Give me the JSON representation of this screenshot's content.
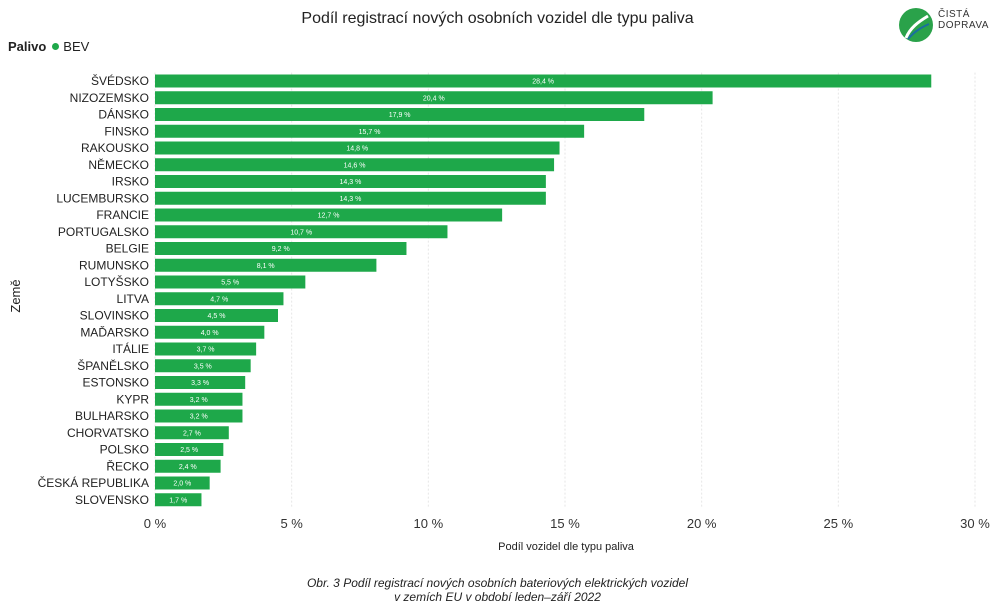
{
  "chart_data": {
    "type": "bar",
    "orientation": "horizontal",
    "title": "Podíl registrací nových osobních vozidel dle typu paliva",
    "xlabel": "Podíl vozidel dle typu paliva",
    "ylabel": "Země",
    "xlim": [
      0,
      30
    ],
    "xticks": [
      0,
      5,
      10,
      15,
      20,
      25,
      30
    ],
    "tick_suffix": " %",
    "grid": true,
    "legend": {
      "title": "Palivo",
      "position": "top-left",
      "entries": [
        "BEV"
      ]
    },
    "bar_color": "#1ea84a",
    "categories": [
      "ŠVÉDSKO",
      "NIZOZEMSKO",
      "DÁNSKO",
      "FINSKO",
      "RAKOUSKO",
      "NĚMECKO",
      "IRSKO",
      "LUCEMBURSKO",
      "FRANCIE",
      "PORTUGALSKO",
      "BELGIE",
      "RUMUNSKO",
      "LOTYŠSKO",
      "LITVA",
      "SLOVINSKO",
      "MAĎARSKO",
      "ITÁLIE",
      "ŠPANĚLSKO",
      "ESTONSKO",
      "KYPR",
      "BULHARSKO",
      "CHORVATSKO",
      "POLSKO",
      "ŘECKO",
      "ČESKÁ REPUBLIKA",
      "SLOVENSKO"
    ],
    "series": [
      {
        "name": "BEV",
        "values": [
          28.4,
          20.4,
          17.9,
          15.7,
          14.8,
          14.6,
          14.3,
          14.3,
          12.7,
          10.7,
          9.2,
          8.1,
          5.5,
          4.7,
          4.5,
          4.0,
          3.7,
          3.5,
          3.3,
          3.2,
          3.2,
          2.7,
          2.5,
          2.4,
          2.0,
          1.7
        ],
        "labels": [
          "28,4 %",
          "20,4 %",
          "17,9 %",
          "15,7 %",
          "14,8 %",
          "14,6 %",
          "14,3 %",
          "14,3 %",
          "12,7 %",
          "10,7 %",
          "9,2 %",
          "8,1 %",
          "5,5 %",
          "4,7 %",
          "4,5 %",
          "4,0 %",
          "3,7 %",
          "3,5 %",
          "3,3 %",
          "3,2 %",
          "3,2 %",
          "2,7 %",
          "2,5 %",
          "2,4 %",
          "2,0 %",
          "1,7 %"
        ]
      }
    ]
  },
  "logo": {
    "line1": "ČISTÁ",
    "line2": "DOPRAVA"
  },
  "caption": {
    "line1": "Obr. 3 Podíl registrací nových osobních bateriových elektrických vozidel",
    "line2": "v zemích EU v období leden–září 2022"
  }
}
